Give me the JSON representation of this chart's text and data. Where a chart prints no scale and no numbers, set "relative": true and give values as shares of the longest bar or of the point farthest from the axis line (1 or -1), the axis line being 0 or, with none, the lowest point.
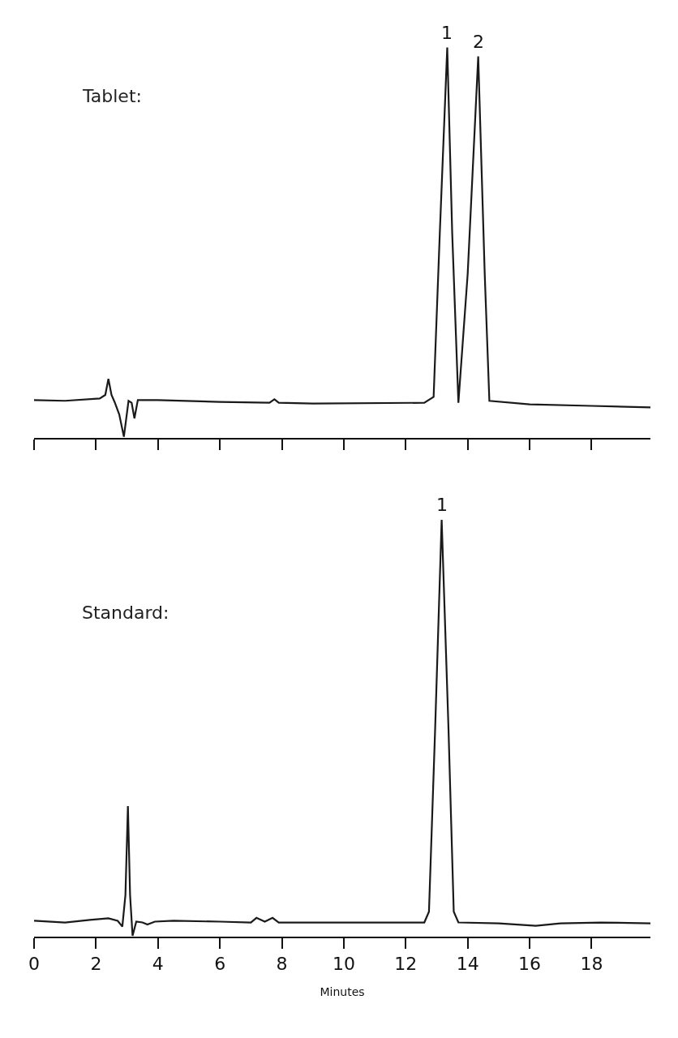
{
  "chart_data": [
    {
      "type": "line",
      "title": "Tablet:",
      "relative": true,
      "xlim": [
        0,
        19.9
      ],
      "xticks": [
        0,
        2,
        4,
        6,
        8,
        10,
        12,
        14,
        16,
        18
      ],
      "tick_labels": false,
      "marker": "none",
      "line_style": "solid",
      "annotations": [
        {
          "text": "1",
          "x": 13.34,
          "y": 1
        },
        {
          "text": "2",
          "x": 14.34,
          "y": 0.977
        }
      ],
      "x": [
        0,
        1,
        2.12,
        2.3,
        2.4,
        2.5,
        2.6,
        2.75,
        2.9,
        3.05,
        3.15,
        3.24,
        3.35,
        4,
        6,
        7.6,
        7.76,
        7.9,
        9,
        12.6,
        12.9,
        13.1,
        13.34,
        13.5,
        13.7,
        14.0,
        14.34,
        14.55,
        14.7,
        16,
        18,
        19.9
      ],
      "series": [
        {
          "color": "#1a1a1a",
          "values": [
            0.097,
            0.095,
            0.101,
            0.11,
            0.151,
            0.11,
            0.092,
            0.06,
            0.003,
            0.095,
            0.09,
            0.05,
            0.097,
            0.097,
            0.092,
            0.09,
            0.099,
            0.09,
            0.088,
            0.09,
            0.105,
            0.525,
            1,
            0.525,
            0.09,
            0.42,
            0.977,
            0.42,
            0.095,
            0.086,
            0.082,
            0.078
          ]
        }
      ]
    },
    {
      "type": "line",
      "title": "Standard:",
      "xlabel": "Minutes",
      "relative": true,
      "xlim": [
        0,
        19.9
      ],
      "xticks": [
        0,
        2,
        4,
        6,
        8,
        10,
        12,
        14,
        16,
        18
      ],
      "tick_labels": "x",
      "marker": "none",
      "line_style": "solid",
      "annotations": [
        {
          "text": "1",
          "x": 13.16,
          "y": 1
        }
      ],
      "x": [
        0,
        1,
        1.8,
        2.4,
        2.7,
        2.85,
        2.95,
        3.03,
        3.1,
        3.18,
        3.3,
        3.5,
        3.66,
        3.9,
        4.5,
        6,
        7.0,
        7.18,
        7.45,
        7.7,
        7.9,
        10,
        12.6,
        12.75,
        12.95,
        13.16,
        13.38,
        13.55,
        13.7,
        15,
        16.2,
        17,
        18.3,
        19.9
      ],
      "series": [
        {
          "color": "#1a1a1a",
          "values": [
            0.038,
            0.034,
            0.04,
            0.044,
            0.038,
            0.024,
            0.1,
            0.313,
            0.1,
            0.002,
            0.036,
            0.034,
            0.029,
            0.036,
            0.038,
            0.036,
            0.034,
            0.045,
            0.036,
            0.045,
            0.034,
            0.034,
            0.034,
            0.06,
            0.5,
            1,
            0.5,
            0.06,
            0.034,
            0.032,
            0.026,
            0.032,
            0.034,
            0.032
          ]
        }
      ]
    }
  ]
}
